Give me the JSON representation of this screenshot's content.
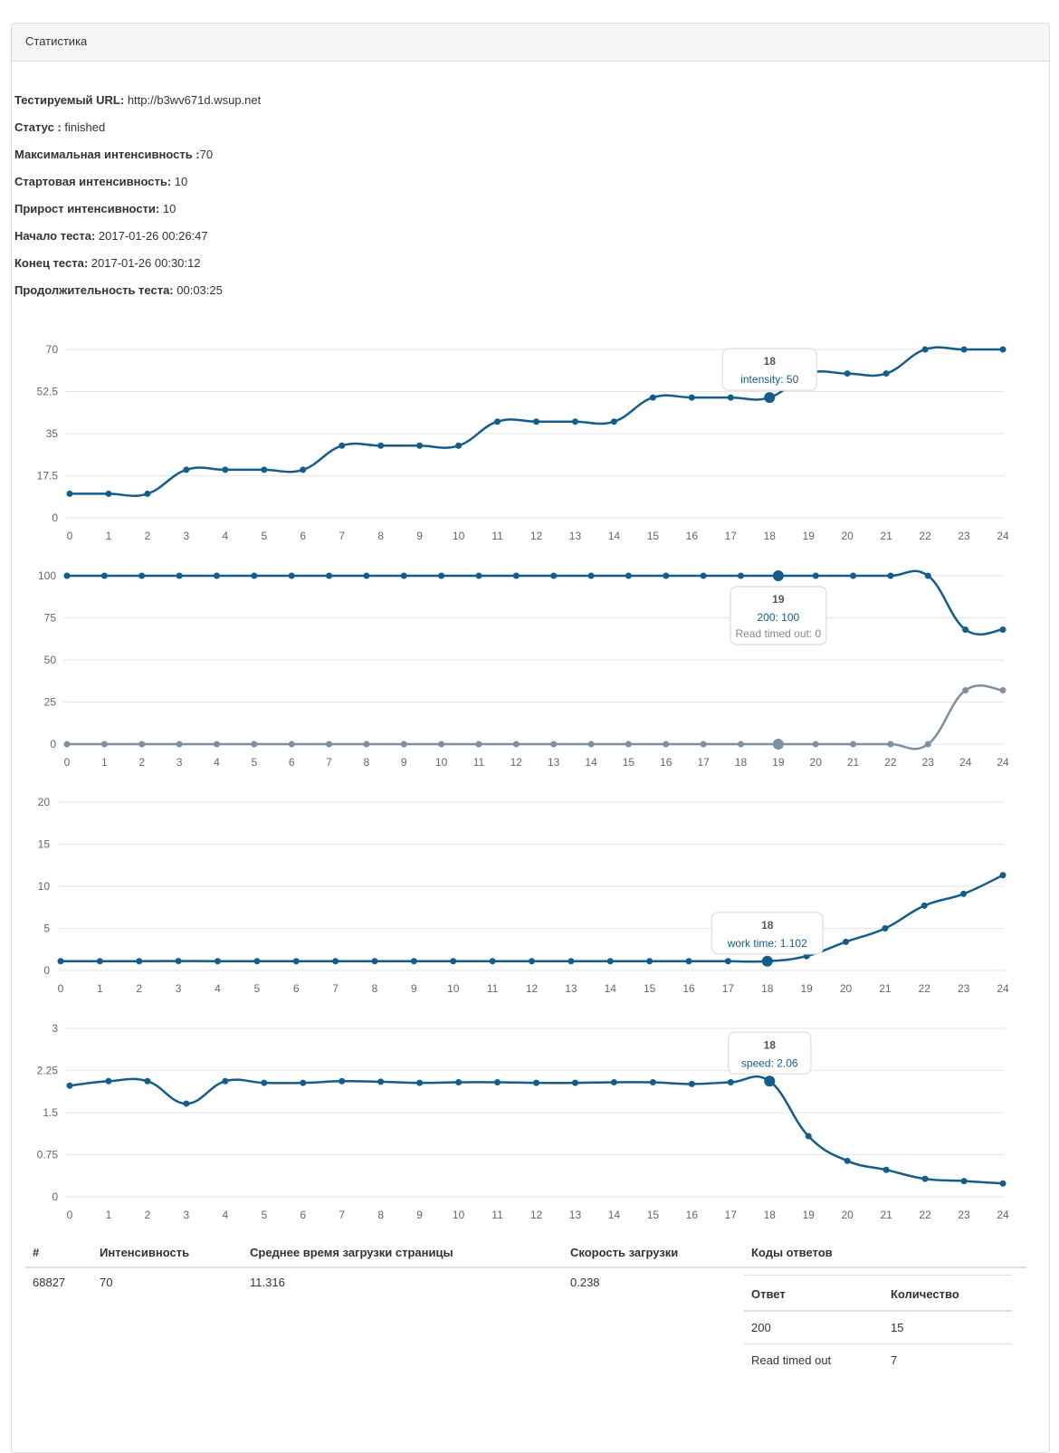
{
  "panel": {
    "title": "Статистика"
  },
  "info": [
    {
      "label": "Тестируемый URL:",
      "value": " http://b3wv671d.wsup.net"
    },
    {
      "label": "Статус :",
      "value": " finished"
    },
    {
      "label": "Максимальная интенсивность :",
      "value": "70"
    },
    {
      "label": "Стартовая интенсивность:",
      "value": " 10"
    },
    {
      "label": "Прирост интенсивности:",
      "value": " 10"
    },
    {
      "label": "Начало теста:",
      "value": " 2017-01-26 00:26:47"
    },
    {
      "label": "Конец теста:",
      "value": " 2017-01-26 00:30:12"
    },
    {
      "label": "Продолжительность теста:",
      "value": " 00:03:25"
    }
  ],
  "colors": {
    "primary": "#145d8a",
    "secondary": "#7f8fa0",
    "grid": "#e6e6e6"
  },
  "chart_data": [
    {
      "type": "line",
      "title": "",
      "xlabel": "",
      "ylabel": "",
      "x": [
        "0",
        "1",
        "2",
        "3",
        "4",
        "5",
        "6",
        "7",
        "8",
        "9",
        "10",
        "11",
        "12",
        "13",
        "14",
        "15",
        "16",
        "17",
        "18",
        "19",
        "20",
        "21",
        "22",
        "23",
        "24"
      ],
      "yticks": [
        "0",
        "17.5",
        "35",
        "52.5",
        "70"
      ],
      "ylim": [
        0,
        70
      ],
      "grid": true,
      "series": [
        {
          "name": "intensity",
          "color": "#145d8a",
          "values": [
            10,
            10,
            10,
            20,
            20,
            20,
            20,
            30,
            30,
            30,
            30,
            40,
            40,
            40,
            40,
            50,
            50,
            50,
            50,
            60,
            60,
            60,
            70,
            70,
            70
          ]
        }
      ],
      "tooltip": {
        "index": 18,
        "title": "18",
        "lines": [
          "intensity: 50"
        ]
      }
    },
    {
      "type": "line",
      "title": "",
      "xlabel": "",
      "ylabel": "",
      "x": [
        "0",
        "1",
        "2",
        "3",
        "4",
        "5",
        "6",
        "7",
        "8",
        "9",
        "10",
        "11",
        "12",
        "13",
        "14",
        "15",
        "16",
        "17",
        "18",
        "19",
        "20",
        "21",
        "22",
        "23",
        "24",
        "24"
      ],
      "yticks": [
        "0",
        "25",
        "50",
        "75",
        "100"
      ],
      "ylim": [
        0,
        100
      ],
      "grid": true,
      "series": [
        {
          "name": "200",
          "color": "#145d8a",
          "values": [
            100,
            100,
            100,
            100,
            100,
            100,
            100,
            100,
            100,
            100,
            100,
            100,
            100,
            100,
            100,
            100,
            100,
            100,
            100,
            100,
            100,
            100,
            100,
            100,
            68,
            68
          ]
        },
        {
          "name": "Read timed out",
          "color": "#7f8fa0",
          "values": [
            0,
            0,
            0,
            0,
            0,
            0,
            0,
            0,
            0,
            0,
            0,
            0,
            0,
            0,
            0,
            0,
            0,
            0,
            0,
            0,
            0,
            0,
            0,
            0,
            32,
            32
          ]
        }
      ],
      "tooltip": {
        "index": 19,
        "title": "19",
        "lines": [
          "200: 100",
          "Read timed out: 0"
        ]
      }
    },
    {
      "type": "line",
      "title": "",
      "xlabel": "",
      "ylabel": "",
      "x": [
        "0",
        "1",
        "2",
        "3",
        "4",
        "5",
        "6",
        "7",
        "8",
        "9",
        "10",
        "11",
        "12",
        "13",
        "14",
        "15",
        "16",
        "17",
        "18",
        "19",
        "20",
        "21",
        "22",
        "23",
        "24"
      ],
      "yticks": [
        "0",
        "5",
        "10",
        "15",
        "20"
      ],
      "ylim": [
        0,
        20
      ],
      "grid": true,
      "series": [
        {
          "name": "work time",
          "color": "#145d8a",
          "values": [
            1.1,
            1.1,
            1.1,
            1.12,
            1.1,
            1.1,
            1.1,
            1.1,
            1.1,
            1.1,
            1.1,
            1.1,
            1.1,
            1.1,
            1.1,
            1.1,
            1.1,
            1.1,
            1.102,
            1.7,
            3.4,
            5.0,
            7.7,
            9.1,
            11.316
          ]
        }
      ],
      "tooltip": {
        "index": 18,
        "title": "18",
        "lines": [
          "work time: 1.102"
        ]
      }
    },
    {
      "type": "line",
      "title": "",
      "xlabel": "",
      "ylabel": "",
      "x": [
        "0",
        "1",
        "2",
        "3",
        "4",
        "5",
        "6",
        "7",
        "8",
        "9",
        "10",
        "11",
        "12",
        "13",
        "14",
        "15",
        "16",
        "17",
        "18",
        "19",
        "20",
        "21",
        "22",
        "23",
        "24"
      ],
      "yticks": [
        "0",
        "0.75",
        "1.5",
        "2.25",
        "3"
      ],
      "ylim": [
        0,
        3
      ],
      "grid": true,
      "series": [
        {
          "name": "speed",
          "color": "#145d8a",
          "values": [
            1.98,
            2.06,
            2.06,
            1.66,
            2.06,
            2.03,
            2.03,
            2.06,
            2.05,
            2.03,
            2.04,
            2.04,
            2.03,
            2.03,
            2.04,
            2.04,
            2.01,
            2.04,
            2.06,
            1.08,
            0.64,
            0.48,
            0.32,
            0.28,
            0.238
          ]
        }
      ],
      "tooltip": {
        "index": 18,
        "title": "18",
        "lines": [
          "speed: 2.06"
        ]
      }
    }
  ],
  "table": {
    "headers": [
      "#",
      "Интенсивность",
      "Среднее время загрузки страницы",
      "Скорость загрузки",
      "Коды ответов"
    ],
    "row": {
      "id": "68827",
      "intensity": "70",
      "avg_time": "11.316",
      "speed": "0.238"
    },
    "codes": {
      "headers": [
        "Ответ",
        "Количество"
      ],
      "rows": [
        {
          "code": "200",
          "count": "15"
        },
        {
          "code": "Read timed out",
          "count": "7"
        }
      ]
    }
  }
}
